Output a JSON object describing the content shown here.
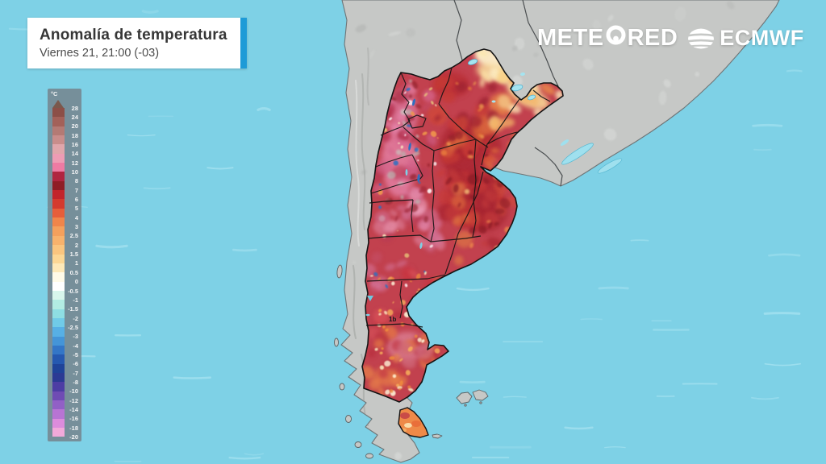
{
  "header": {
    "title": "Anomalía de temperatura",
    "datetime": "Viernes 21, 21:00 (-03)"
  },
  "branding": {
    "meteored_pre": "METE",
    "meteored_post": "RED",
    "ecmwf": "ECMWF"
  },
  "legend": {
    "unit": "°C",
    "tick_labels": [
      "28",
      "24",
      "20",
      "18",
      "16",
      "14",
      "12",
      "10",
      "8",
      "7",
      "6",
      "5",
      "4",
      "3",
      "2.5",
      "2",
      "1.5",
      "1",
      "0.5",
      "0",
      "-0.5",
      "-1",
      "-1.5",
      "-2",
      "-2.5",
      "-3",
      "-4",
      "-5",
      "-6",
      "-7",
      "-8",
      "-10",
      "-12",
      "-14",
      "-16",
      "-18",
      "-20"
    ],
    "arrow_color": "#7b584c",
    "band_colors": [
      "#8c4f47",
      "#a36159",
      "#b47a74",
      "#c98d8b",
      "#e0a6ab",
      "#ed9cb4",
      "#ee7ba3",
      "#b02540",
      "#8f1d26",
      "#c2242b",
      "#d43a2e",
      "#e65e3a",
      "#f0854a",
      "#f4a05c",
      "#f7b26c",
      "#f9c57f",
      "#fbd795",
      "#fde9b8",
      "#fffbe8",
      "#ffffff",
      "#d8f6ec",
      "#b2ece3",
      "#8edee3",
      "#70cbe8",
      "#57b0e5",
      "#4495d8",
      "#3376c7",
      "#2558b0",
      "#1f4399",
      "#2b3a94",
      "#4d3da4",
      "#6f4cb4",
      "#9160c6",
      "#b774d4",
      "#dc8cdc",
      "#f2a9da"
    ]
  },
  "map": {
    "artifact_label": "1b",
    "colors": {
      "ocean": "#7ed1e6",
      "ocean_streak": "#b5e9f4",
      "land": "#c6c8c6",
      "land_border": "#6e7476",
      "country_border": "#4a4e50",
      "province_border": "#141414",
      "anomaly_base": "#c2414e",
      "lake": "#a5e4f0",
      "tdf_fill": "#ee8a48"
    }
  }
}
